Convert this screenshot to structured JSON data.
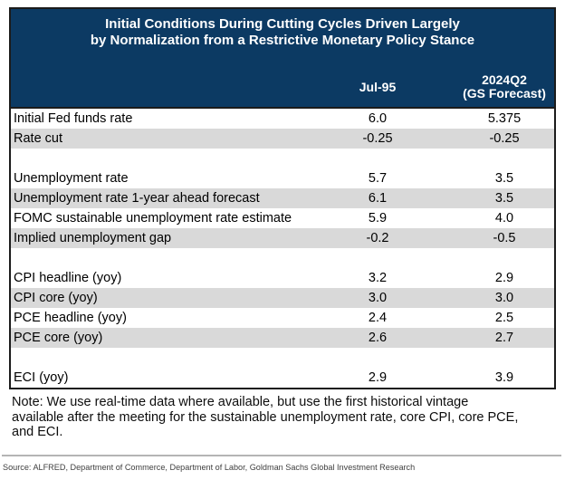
{
  "colors": {
    "header_bg": "#0c3a63",
    "header_text": "#ffffff",
    "row_stripe": "#d9d9d9",
    "border": "#1b1b1b",
    "rule": "#b5b5b5",
    "source_text": "#3f3f3f"
  },
  "chart_data": {
    "type": "table",
    "title": "Initial Conditions During Cutting Cycles Driven Largely by Normalization from a Restrictive Monetary Policy Stance",
    "title_lines": [
      "Initial Conditions During Cutting Cycles Driven Largely",
      "by Normalization from a Restrictive Monetary Policy Stance"
    ],
    "columns": [
      "Jul-95",
      "2024Q2 (GS Forecast)"
    ],
    "col_headers": {
      "jul95": "Jul-95",
      "q2_line1": "2024Q2",
      "q2_line2": "(GS Forecast)"
    },
    "rows": [
      {
        "label": "Initial Fed funds rate",
        "values": [
          "6.0",
          "5.375"
        ],
        "shaded": false,
        "blank": false
      },
      {
        "label": "Rate cut",
        "values": [
          "-0.25",
          "-0.25"
        ],
        "shaded": true,
        "blank": false
      },
      {
        "label": "",
        "values": [
          "",
          ""
        ],
        "shaded": false,
        "blank": true
      },
      {
        "label": "Unemployment rate",
        "values": [
          "5.7",
          "3.5"
        ],
        "shaded": false,
        "blank": false
      },
      {
        "label": "Unemployment rate 1-year ahead forecast",
        "values": [
          "6.1",
          "3.5"
        ],
        "shaded": true,
        "blank": false
      },
      {
        "label": "FOMC sustainable unemployment rate estimate",
        "values": [
          "5.9",
          "4.0"
        ],
        "shaded": false,
        "blank": false
      },
      {
        "label": "Implied unemployment gap",
        "values": [
          "-0.2",
          "-0.5"
        ],
        "shaded": true,
        "blank": false
      },
      {
        "label": "",
        "values": [
          "",
          ""
        ],
        "shaded": false,
        "blank": true
      },
      {
        "label": "CPI headline (yoy)",
        "values": [
          "3.2",
          "2.9"
        ],
        "shaded": false,
        "blank": false
      },
      {
        "label": "CPI core (yoy)",
        "values": [
          "3.0",
          "3.0"
        ],
        "shaded": true,
        "blank": false
      },
      {
        "label": "PCE headline (yoy)",
        "values": [
          "2.4",
          "2.5"
        ],
        "shaded": false,
        "blank": false
      },
      {
        "label": "PCE core (yoy)",
        "values": [
          "2.6",
          "2.7"
        ],
        "shaded": true,
        "blank": false
      },
      {
        "label": "",
        "values": [
          "",
          ""
        ],
        "shaded": false,
        "blank": true
      },
      {
        "label": "ECI (yoy)",
        "values": [
          "2.9",
          "3.9"
        ],
        "shaded": false,
        "blank": false
      }
    ]
  },
  "note": "Note: We use real-time data where available, but use the first historical vintage available after the meeting for the sustainable unemployment rate, core CPI, core PCE, and ECI.",
  "source": "Source: ALFRED, Department of Commerce, Department of Labor, Goldman Sachs Global Investment Research"
}
